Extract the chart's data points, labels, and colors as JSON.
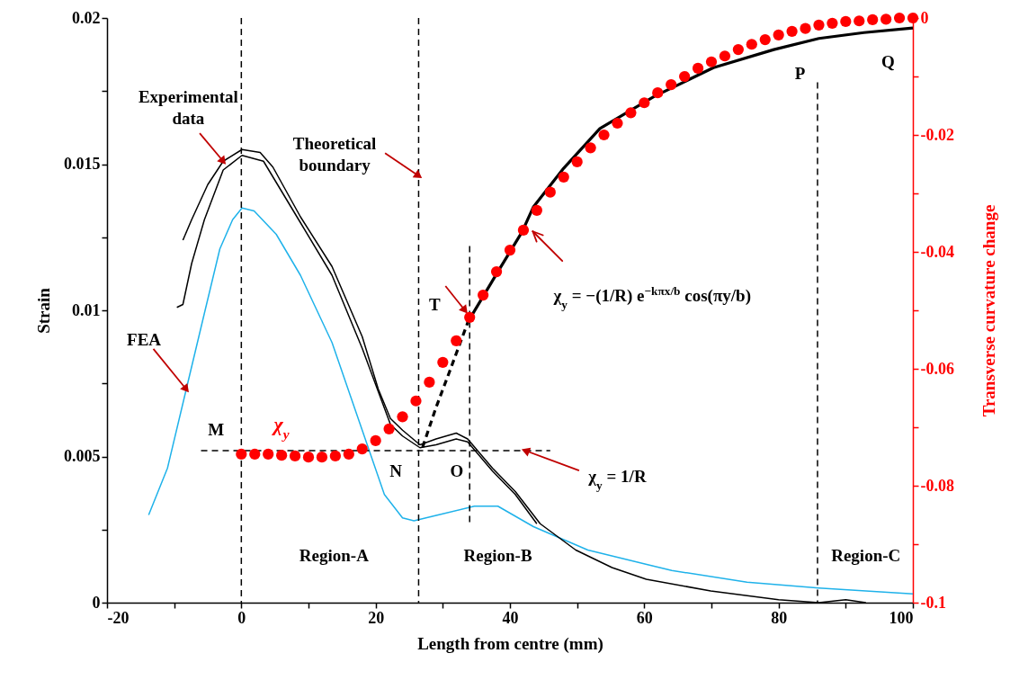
{
  "chart_data": {
    "type": "line",
    "xlabel": "Length from centre (mm)",
    "ylabel": "Strain",
    "y2label": "Transverse curvature change",
    "xlim": [
      -20,
      100
    ],
    "xticks": [
      -20,
      {
        "value": -10,
        "label": null
      },
      0,
      {
        "value": 10,
        "label": null
      },
      20,
      {
        "value": 30,
        "label": null
      },
      40,
      {
        "value": 50,
        "label": null
      },
      60,
      {
        "value": 70,
        "label": null
      },
      80,
      {
        "value": 90,
        "label": null
      },
      100
    ],
    "ylim": [
      0,
      0.02
    ],
    "yticks": [
      0,
      {
        "value": 0.0025,
        "label": null
      },
      0.005,
      {
        "value": 0.0075,
        "label": null
      },
      0.01,
      {
        "value": 0.0125,
        "label": null
      },
      0.015,
      {
        "value": 0.0175,
        "label": null
      },
      0.02
    ],
    "y2lim": [
      -0.1,
      0
    ],
    "y2ticks": [
      -0.1,
      {
        "value": -0.09,
        "label": null
      },
      -0.08,
      {
        "value": -0.07,
        "label": null
      },
      -0.06,
      {
        "value": -0.05,
        "label": null
      },
      -0.04,
      {
        "value": -0.03,
        "label": null
      },
      -0.02,
      {
        "value": -0.01,
        "label": null
      },
      0
    ],
    "series": [
      {
        "color": "#1fb2ea",
        "x": [
          -13.8,
          -11,
          -8.2,
          -5.5,
          -3.2,
          -1.3,
          0.1,
          1.9,
          5.2,
          8.8,
          13.5,
          18,
          21.3,
          24,
          25.7,
          29.3,
          34.7,
          38.2,
          43.5,
          51.6,
          60.5,
          64.1,
          75.3,
          86,
          100
        ],
        "values": [
          0.003,
          0.0046,
          0.0073,
          0.0099,
          0.0121,
          0.0131,
          0.0135,
          0.0134,
          0.0126,
          0.0112,
          0.0089,
          0.0059,
          0.0037,
          0.0029,
          0.0028,
          0.003,
          0.0033,
          0.0033,
          0.0026,
          0.0018,
          0.0013,
          0.0011,
          0.0007,
          0.0005,
          0.0003
        ]
      },
      {
        "color": "#000000",
        "x": [
          -8.7,
          -7.4,
          -5,
          -2.7,
          0.1,
          2.8,
          4.7,
          8.8,
          13.5,
          18,
          20.4,
          22.2,
          24,
          26.6,
          29,
          32,
          33.7,
          37.4,
          40.8,
          44.5,
          49.8,
          55.2,
          60.3,
          69.9,
          80,
          86,
          90,
          93
        ],
        "values": [
          0.0124,
          0.0131,
          0.0143,
          0.0151,
          0.0155,
          0.0154,
          0.0149,
          0.0132,
          0.0115,
          0.0091,
          0.0073,
          0.0063,
          0.0059,
          0.0054,
          0.0056,
          0.0058,
          0.0056,
          0.0046,
          0.0038,
          0.0027,
          0.0018,
          0.0012,
          0.0008,
          0.0004,
          0.0001,
          0,
          0.0001,
          0
        ]
      },
      {
        "color": "#000000",
        "x": [
          -9.6,
          -8.7,
          -7.4,
          -5.5,
          -2.7,
          0.1,
          3.3,
          8.8,
          13.5,
          18,
          22.2,
          24,
          26.6,
          29,
          32,
          33.7,
          37.4,
          40.8,
          44
        ],
        "values": [
          0.0101,
          0.0102,
          0.0116,
          0.0131,
          0.0148,
          0.0153,
          0.0151,
          0.013,
          0.0112,
          0.0087,
          0.0061,
          0.0057,
          0.0053,
          0.0054,
          0.0056,
          0.0055,
          0.0045,
          0.0037,
          0.0027
        ]
      },
      {
        "color": "#000000",
        "line_style": "dashed",
        "x": [
          -6,
          46
        ],
        "values": [
          0.0052,
          0.0052
        ]
      },
      {
        "color": "#000000",
        "line_style": "dashed",
        "x": [
          34,
          34
        ],
        "values": [
          0.0122,
          0.0027
        ]
      },
      {
        "color": "#000000",
        "line_style": "dashed",
        "x": [
          85.8,
          85.8
        ],
        "values": [
          0.0178,
          0
        ]
      },
      {
        "color": "#000000",
        "axis": "y2",
        "line_style": "dashed",
        "x": [
          27,
          29,
          31,
          34
        ],
        "values": [
          -0.0734,
          -0.0666,
          -0.0605,
          -0.0512
        ]
      },
      {
        "color": "#000000",
        "axis": "y2",
        "x": [
          34.2,
          38.2,
          41.8,
          43.5,
          48,
          53.4,
          61.5,
          70.3,
          79.3,
          86,
          92.7,
          100
        ],
        "values": [
          -0.0511,
          -0.0434,
          -0.0366,
          -0.0323,
          -0.0257,
          -0.0189,
          -0.0134,
          -0.0085,
          -0.0054,
          -0.0035,
          -0.0025,
          -0.0017
        ]
      },
      {
        "type": "scatter",
        "name": "χ$_{y}$",
        "color": "#ff0000",
        "marker": "circle",
        "axis": "y2",
        "x": [
          0,
          2,
          4,
          6,
          8,
          10,
          12,
          14,
          16,
          18,
          20,
          22,
          24,
          26,
          28,
          30,
          32,
          34,
          36,
          38,
          40,
          42,
          44,
          46,
          48,
          50,
          52,
          54,
          56,
          58,
          60,
          62,
          64,
          66,
          68,
          70,
          72,
          74,
          76,
          78,
          80,
          82,
          84,
          86,
          88,
          90,
          92,
          94,
          96,
          98,
          100
        ],
        "values": [
          -0.0746,
          -0.0746,
          -0.0746,
          -0.0748,
          -0.0749,
          -0.0751,
          -0.0751,
          -0.0749,
          -0.0746,
          -0.0737,
          -0.0723,
          -0.0703,
          -0.0682,
          -0.0655,
          -0.0623,
          -0.0589,
          -0.0552,
          -0.0512,
          -0.0474,
          -0.0434,
          -0.0397,
          -0.0363,
          -0.0329,
          -0.0298,
          -0.0272,
          -0.0246,
          -0.0222,
          -0.02,
          -0.018,
          -0.0162,
          -0.0145,
          -0.0128,
          -0.0114,
          -0.01,
          -0.0086,
          -0.0075,
          -0.0065,
          -0.0054,
          -0.0045,
          -0.0037,
          -0.0029,
          -0.0023,
          -0.0018,
          -0.0012,
          -0.0009,
          -0.0006,
          -0.0005,
          -0.0003,
          -0.0002,
          0,
          0
        ]
      }
    ],
    "ref_lines": [
      {
        "axis": "x",
        "value": 0,
        "line_style": "dashed"
      },
      {
        "axis": "x",
        "value": 26.4,
        "line_style": "dashed"
      }
    ],
    "annotations": [
      {
        "text": "Experimental\ndata",
        "x": -2.7,
        "y": 0.0151
      },
      {
        "text": "Theoretical\nboundary",
        "x": 26.4,
        "y": 0.0146
      },
      {
        "text": "FEA",
        "x": -8.2,
        "y": 0.0073
      },
      "M",
      "N",
      "O",
      {
        "text": "T",
        "x": 33.3,
        "y": 0.01
      },
      "P",
      "Q",
      "Region-A",
      "Region-B",
      "Region-C",
      "χ$_{y}$ = −(1/R) e$^{−kπx/b}$ cos(πy/b)",
      {
        "text": "χ$_{y}$ = 1/R",
        "x": 42.3,
        "y": 0.0052
      }
    ]
  }
}
